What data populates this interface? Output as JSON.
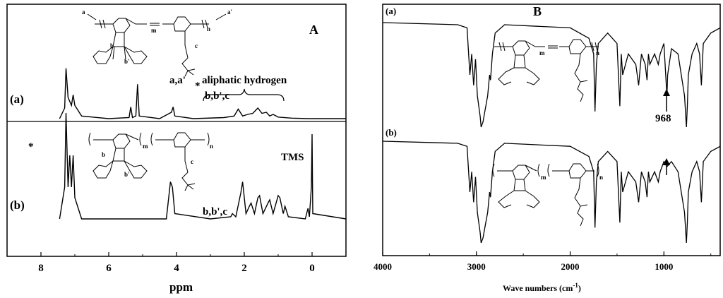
{
  "chart_data": [
    {
      "type": "line",
      "panel": "A",
      "xlabel": "ppm",
      "ylabel": "",
      "xlim": [
        9,
        -1
      ],
      "x_ticks": [
        "8",
        "6",
        "4",
        "2",
        "0"
      ],
      "series": [
        {
          "name": "(a)",
          "x": [
            7.45,
            7.3,
            7.26,
            7.2,
            7.1,
            7.05,
            7.0,
            6.8,
            6.0,
            5.4,
            5.35,
            5.3,
            5.2,
            5.15,
            5.1,
            4.5,
            4.15,
            4.1,
            4.05,
            3.5,
            2.6,
            2.3,
            2.18,
            2.05,
            1.9,
            1.75,
            1.6,
            1.48,
            1.35,
            1.25,
            1.15,
            1.0,
            0.6,
            0.1,
            -1.0
          ],
          "y": [
            0,
            0.2,
            0.95,
            0.4,
            0.25,
            0.45,
            0.25,
            0.05,
            0,
            0.02,
            0.22,
            0.02,
            0.05,
            0.65,
            0.05,
            0,
            0.12,
            0.22,
            0.05,
            0,
            0.02,
            0.05,
            0.18,
            0.05,
            0.08,
            0.1,
            0.2,
            0.1,
            0.12,
            0.05,
            0.08,
            0.03,
            0.01,
            0,
            0
          ]
        },
        {
          "name": "(b)",
          "x": [
            7.45,
            7.3,
            7.26,
            7.2,
            7.15,
            7.1,
            7.05,
            7.0,
            6.8,
            4.3,
            4.18,
            4.12,
            4.05,
            3.0,
            2.4,
            2.35,
            2.25,
            2.1,
            2.05,
            1.95,
            1.85,
            1.8,
            1.7,
            1.6,
            1.55,
            1.45,
            1.3,
            1.25,
            1.15,
            1.0,
            0.95,
            0.85,
            0.8,
            0.7,
            0.2,
            0.12,
            0.08,
            0.02,
            0.0,
            -0.02,
            -1.0
          ],
          "y": [
            0,
            0.3,
            1.0,
            0.3,
            0.6,
            0.3,
            0.6,
            0.2,
            0,
            0,
            0.35,
            0.3,
            0.05,
            0,
            0.02,
            0.05,
            0.02,
            0.25,
            0.35,
            0.05,
            0.12,
            0.15,
            0.05,
            0.2,
            0.22,
            0.05,
            0.15,
            0.18,
            0.05,
            0.22,
            0.2,
            0.05,
            0.12,
            0.02,
            0,
            0.1,
            0.02,
            0.3,
            0.8,
            0.05,
            0
          ]
        }
      ],
      "annotations": [
        "a,a'",
        "*",
        "b,b',c",
        "aliphatic hydrogen",
        "*",
        "b,b',c",
        "TMS"
      ],
      "structure_labels": {
        "a": "a",
        "a_prime": "a'",
        "m": "m",
        "n": "n",
        "b": "b",
        "b_prime": "b'",
        "c": "c"
      }
    },
    {
      "type": "line",
      "panel": "B",
      "xlabel": "Wave numbers (cm",
      "xlabel_sup": "-1",
      "xlabel_close": ")",
      "ylabel": "",
      "xlim": [
        4000,
        400
      ],
      "x_ticks": [
        "4000",
        "3000",
        "2000",
        "1000"
      ],
      "series": [
        {
          "name": "(a)",
          "x": [
            4000,
            3200,
            3100,
            3070,
            3050,
            3030,
            3010,
            2990,
            2960,
            2950,
            2930,
            2910,
            2880,
            2860,
            2850,
            2830,
            2800,
            2700,
            2000,
            1800,
            1750,
            1735,
            1720,
            1700,
            1600,
            1500,
            1470,
            1455,
            1440,
            1380,
            1300,
            1270,
            1240,
            1200,
            1180,
            1165,
            1150,
            1100,
            1060,
            1040,
            1000,
            975,
            968,
            960,
            920,
            850,
            780,
            760,
            750,
            740,
            700,
            650,
            620,
            600,
            580,
            500,
            400
          ],
          "y": [
            0,
            0.02,
            0.05,
            0.5,
            0.3,
            0.6,
            0.35,
            0.7,
            0.9,
            1.0,
            0.95,
            0.85,
            0.7,
            0.5,
            0.55,
            0.3,
            0.1,
            0.02,
            0.05,
            0.15,
            0.3,
            0.85,
            0.4,
            0.2,
            0.1,
            0.2,
            0.8,
            0.3,
            0.5,
            0.3,
            0.4,
            0.6,
            0.3,
            0.4,
            0.55,
            0.3,
            0.4,
            0.3,
            0.4,
            0.3,
            0.2,
            0.6,
            0.7,
            0.5,
            0.25,
            0.3,
            0.7,
            1.0,
            0.8,
            0.5,
            0.3,
            0.2,
            0.3,
            0.6,
            0.2,
            0.1,
            0.05
          ]
        },
        {
          "name": "(b)",
          "x": [
            4000,
            3200,
            3100,
            3070,
            3050,
            3030,
            3010,
            2990,
            2960,
            2950,
            2930,
            2910,
            2880,
            2860,
            2850,
            2830,
            2800,
            2700,
            2000,
            1800,
            1750,
            1735,
            1720,
            1700,
            1600,
            1500,
            1470,
            1455,
            1440,
            1380,
            1300,
            1270,
            1240,
            1200,
            1180,
            1165,
            1150,
            1100,
            1060,
            1040,
            1000,
            968,
            920,
            850,
            780,
            760,
            750,
            740,
            700,
            650,
            620,
            600,
            580,
            500,
            400
          ],
          "y": [
            0,
            0.02,
            0.05,
            0.5,
            0.3,
            0.6,
            0.35,
            0.7,
            0.9,
            1.0,
            0.95,
            0.85,
            0.7,
            0.5,
            0.55,
            0.3,
            0.1,
            0.02,
            0.05,
            0.15,
            0.3,
            0.85,
            0.4,
            0.2,
            0.1,
            0.2,
            0.8,
            0.3,
            0.5,
            0.3,
            0.4,
            0.6,
            0.3,
            0.4,
            0.55,
            0.3,
            0.4,
            0.3,
            0.4,
            0.3,
            0.2,
            0.25,
            0.2,
            0.3,
            0.7,
            1.0,
            0.8,
            0.5,
            0.3,
            0.2,
            0.3,
            0.6,
            0.2,
            0.1,
            0.05
          ]
        }
      ],
      "annotations": [
        "968"
      ],
      "structure_labels": {
        "m": "m",
        "n": "n"
      }
    }
  ]
}
